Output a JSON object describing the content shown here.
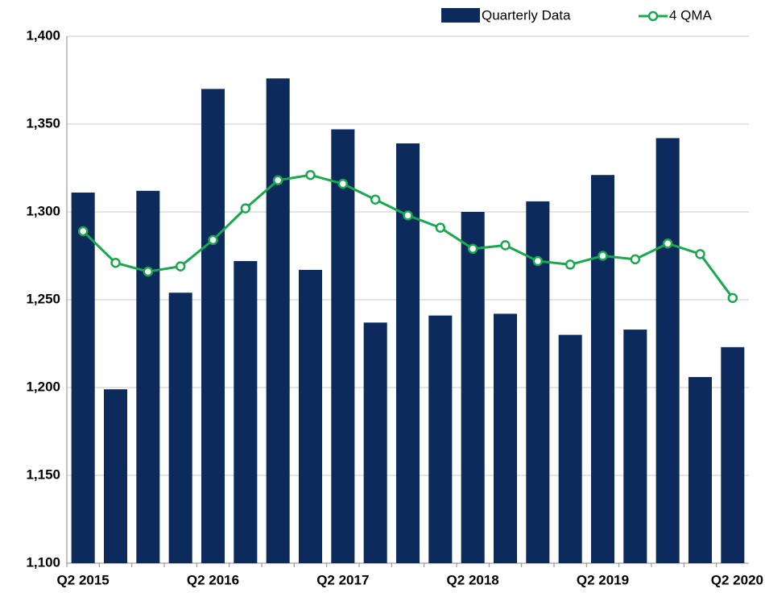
{
  "chart_data": {
    "type": "bar_line",
    "categories": [
      "Q2 2015",
      null,
      null,
      null,
      "Q2 2016",
      null,
      null,
      null,
      "Q2 2017",
      null,
      null,
      null,
      "Q2 2018",
      null,
      null,
      null,
      "Q2 2019",
      null,
      null,
      null,
      "Q2 2020"
    ],
    "series": [
      {
        "name": "Quarterly Data",
        "type": "bar",
        "color": "#0c2a5b",
        "values": [
          1311,
          1199,
          1312,
          1254,
          1370,
          1272,
          1376,
          1267,
          1347,
          1237,
          1339,
          1241,
          1300,
          1242,
          1306,
          1230,
          1321,
          1233,
          1342,
          1206,
          1223
        ]
      },
      {
        "name": "4 QMA",
        "type": "line",
        "color": "#1aa74f",
        "values": [
          1289,
          1271,
          1266,
          1269,
          1284,
          1302,
          1318,
          1321,
          1316,
          1307,
          1298,
          1291,
          1279,
          1281,
          1272,
          1270,
          1275,
          1273,
          1282,
          1276,
          1251
        ]
      }
    ],
    "ylim": [
      1100,
      1400
    ],
    "yticks": [
      {
        "value": 1100,
        "label": "1,100"
      },
      {
        "value": 1150,
        "label": "1,150"
      },
      {
        "value": 1200,
        "label": "1,200"
      },
      {
        "value": 1250,
        "label": "1,250"
      },
      {
        "value": 1300,
        "label": "1,300"
      },
      {
        "value": 1350,
        "label": "1,350"
      },
      {
        "value": 1400,
        "label": "1,400"
      }
    ],
    "grid": true,
    "legend": "top-right"
  }
}
